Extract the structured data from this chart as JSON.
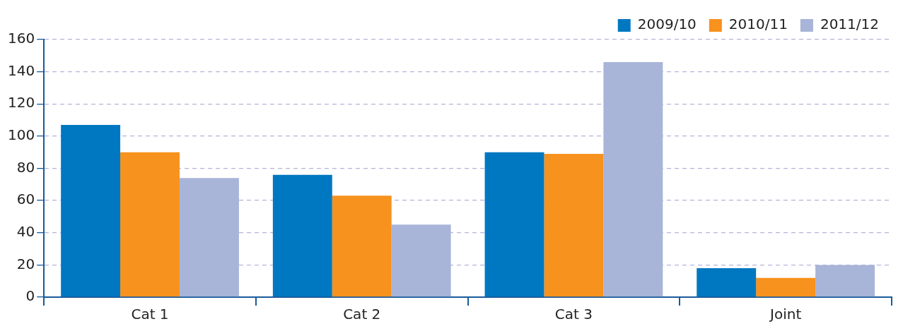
{
  "chart_data": {
    "type": "bar",
    "categories": [
      "Cat 1",
      "Cat 2",
      "Cat 3",
      "Joint"
    ],
    "series": [
      {
        "name": "2009/10",
        "color": "#0078c1",
        "values": [
          107,
          76,
          90,
          18
        ]
      },
      {
        "name": "2010/11",
        "color": "#f7921e",
        "values": [
          90,
          63,
          89,
          12
        ]
      },
      {
        "name": "2011/12",
        "color": "#a8b4d8",
        "values": [
          74,
          45,
          146,
          20
        ]
      }
    ],
    "ylim": [
      0,
      160
    ],
    "yticks": [
      0,
      20,
      40,
      60,
      80,
      100,
      120,
      140,
      160
    ],
    "grid": "y",
    "legend": "top right"
  }
}
